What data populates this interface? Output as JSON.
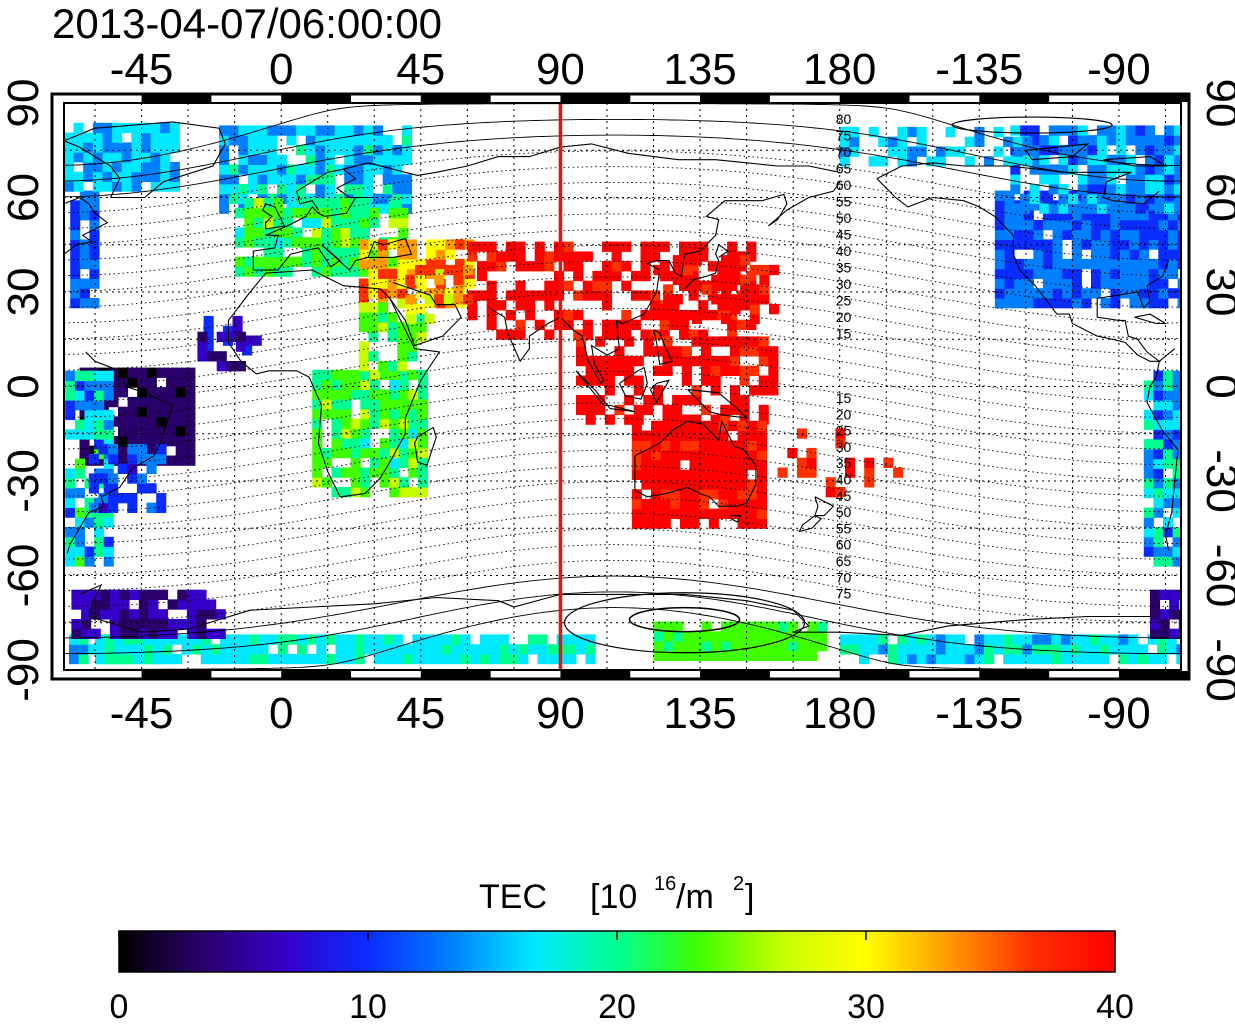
{
  "map": {
    "timestamp": "2013-04-07/06:00:00",
    "projection": "equirectangular",
    "lon_center": 110,
    "lon_ticks": [
      "0",
      "45",
      "90",
      "135",
      "180",
      "-135",
      "-90",
      "-45"
    ],
    "lat_ticks": [
      "90",
      "60",
      "30",
      "0",
      "-30",
      "-60",
      "-90"
    ],
    "meridian_marker_lon": 90,
    "meridian_marker_color": "#e8130f",
    "mlat_labels_north": [
      "80",
      "75",
      "70",
      "65",
      "60",
      "55",
      "50",
      "45",
      "40",
      "35",
      "30",
      "25",
      "20",
      "15"
    ],
    "mlat_labels_south": [
      "15",
      "20",
      "25",
      "30",
      "35",
      "40",
      "45",
      "50",
      "55",
      "60",
      "65",
      "70",
      "75"
    ],
    "grid": "dotted"
  },
  "colorbar": {
    "title_prefix": "TEC",
    "title_base": "[10",
    "title_exp": "16",
    "title_mid": "/m",
    "title_exp2": "2",
    "title_suffix": "]",
    "min": 0,
    "max": 40,
    "tick_labels": [
      "0",
      "10",
      "20",
      "30",
      "40"
    ],
    "stops": [
      "#000000",
      "#2a006a",
      "#3500c8",
      "#0a2cff",
      "#0080ff",
      "#00e8ff",
      "#00ff90",
      "#40ff00",
      "#c8ff00",
      "#ffff00",
      "#ff9a00",
      "#ff3000",
      "#ff0000"
    ]
  },
  "tec_regions": [
    {
      "id": "north-america",
      "level": 12,
      "color": "#1e3cff"
    },
    {
      "id": "south-america-east",
      "level": 3,
      "color": "#1a0040"
    },
    {
      "id": "south-america-west",
      "level": 20,
      "color": "#00d8ff"
    },
    {
      "id": "europe",
      "level": 18,
      "color": "#2aa8ff"
    },
    {
      "id": "africa",
      "level": 22,
      "color": "#2fe86a"
    },
    {
      "id": "middle-east",
      "level": 33,
      "color": "#ffb000"
    },
    {
      "id": "asia-equatorial",
      "level": 40,
      "color": "#ff0000"
    },
    {
      "id": "australia",
      "level": 40,
      "color": "#ff0000"
    },
    {
      "id": "antarctica-pacific",
      "level": 23,
      "color": "#55f000"
    },
    {
      "id": "antarctica-atlantic",
      "level": 8,
      "color": "#3210a8"
    },
    {
      "id": "polar-south-band",
      "level": 18,
      "color": "#45c8ff"
    },
    {
      "id": "arctic-band",
      "level": 16,
      "color": "#2ee0ff"
    }
  ]
}
